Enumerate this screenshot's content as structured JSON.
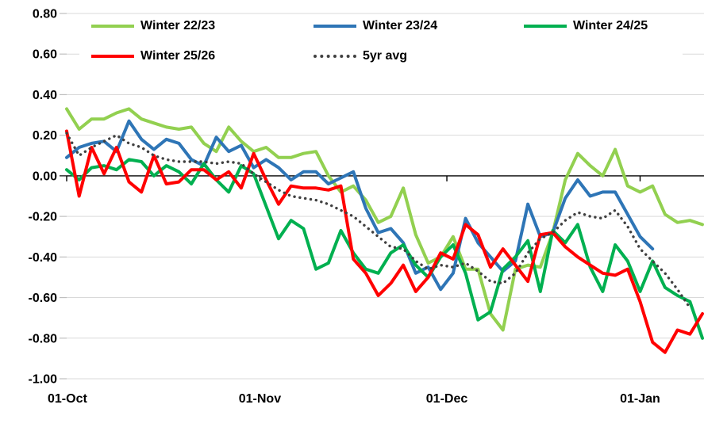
{
  "colors": {
    "background": "#ffffff",
    "gridline": "#d9d9d9",
    "zero_axis": "#000000",
    "tick": "#bfbfbf",
    "text": "#000000"
  },
  "chart_data": {
    "type": "line",
    "title": "",
    "xlabel": "",
    "ylabel": "",
    "legend_position": "top",
    "grid": "horizontal",
    "x_axis": {
      "tick_labels": [
        "01-Oct",
        "01-Nov",
        "01-Dec",
        "01-Jan"
      ],
      "tick_day_offsets": [
        0,
        31,
        61,
        92
      ],
      "total_days": 102
    },
    "y_axis": {
      "ylim": [
        -1.0,
        0.8
      ],
      "ticks": [
        0.8,
        0.6,
        0.4,
        0.2,
        0.0,
        -0.2,
        -0.4,
        -0.6,
        -0.8,
        -1.0
      ],
      "tick_labels": [
        "0.80",
        "0.60",
        "0.40",
        "0.20",
        "0.00",
        "-0.20",
        "-0.40",
        "-0.60",
        "-0.80",
        "-1.00"
      ]
    },
    "sample_step_days": 2,
    "dates": [
      "01-Oct",
      "03-Oct",
      "05-Oct",
      "07-Oct",
      "09-Oct",
      "11-Oct",
      "13-Oct",
      "15-Oct",
      "17-Oct",
      "19-Oct",
      "21-Oct",
      "23-Oct",
      "25-Oct",
      "27-Oct",
      "29-Oct",
      "31-Oct",
      "02-Nov",
      "04-Nov",
      "06-Nov",
      "08-Nov",
      "10-Nov",
      "12-Nov",
      "14-Nov",
      "16-Nov",
      "18-Nov",
      "20-Nov",
      "22-Nov",
      "24-Nov",
      "26-Nov",
      "28-Nov",
      "30-Nov",
      "02-Dec",
      "04-Dec",
      "06-Dec",
      "08-Dec",
      "10-Dec",
      "12-Dec",
      "14-Dec",
      "16-Dec",
      "18-Dec",
      "20-Dec",
      "22-Dec",
      "24-Dec",
      "26-Dec",
      "28-Dec",
      "30-Dec",
      "01-Jan",
      "03-Jan",
      "05-Jan",
      "07-Jan",
      "09-Jan",
      "11-Jan"
    ],
    "series": [
      {
        "name": "Winter 22/23",
        "color": "#92d050",
        "style": "solid",
        "values": [
          0.33,
          0.23,
          0.28,
          0.28,
          0.31,
          0.33,
          0.28,
          0.26,
          0.24,
          0.23,
          0.24,
          0.16,
          0.12,
          0.24,
          0.17,
          0.12,
          0.14,
          0.09,
          0.09,
          0.11,
          0.12,
          0.0,
          -0.08,
          -0.05,
          -0.12,
          -0.23,
          -0.2,
          -0.06,
          -0.29,
          -0.43,
          -0.4,
          -0.3,
          -0.46,
          -0.46,
          -0.68,
          -0.76,
          -0.46,
          -0.44,
          -0.45,
          -0.28,
          -0.02,
          0.11,
          0.05,
          0.0,
          0.13,
          -0.05,
          -0.08,
          -0.05,
          -0.19,
          -0.23,
          -0.22,
          -0.24
        ]
      },
      {
        "name": "Winter 23/24",
        "color": "#2e75b6",
        "style": "solid",
        "values": [
          0.09,
          0.14,
          0.16,
          0.17,
          0.12,
          0.27,
          0.18,
          0.13,
          0.18,
          0.16,
          0.08,
          0.05,
          0.19,
          0.12,
          0.15,
          0.04,
          0.08,
          0.04,
          -0.02,
          0.02,
          0.02,
          -0.04,
          -0.01,
          0.02,
          -0.16,
          -0.28,
          -0.26,
          -0.33,
          -0.48,
          -0.45,
          -0.56,
          -0.48,
          -0.21,
          -0.33,
          -0.4,
          -0.47,
          -0.42,
          -0.14,
          -0.3,
          -0.28,
          -0.11,
          -0.02,
          -0.1,
          -0.08,
          -0.08,
          -0.19,
          -0.3,
          -0.36,
          null,
          null,
          null,
          null
        ]
      },
      {
        "name": "Winter 24/25",
        "color": "#00b050",
        "style": "solid",
        "values": [
          0.03,
          -0.02,
          0.04,
          0.05,
          0.03,
          0.08,
          0.07,
          0.0,
          0.05,
          0.02,
          -0.04,
          0.06,
          -0.02,
          -0.08,
          0.05,
          0.01,
          -0.15,
          -0.31,
          -0.22,
          -0.26,
          -0.46,
          -0.43,
          -0.27,
          -0.38,
          -0.46,
          -0.48,
          -0.38,
          -0.34,
          -0.44,
          -0.5,
          -0.4,
          -0.34,
          -0.48,
          -0.71,
          -0.67,
          -0.46,
          -0.4,
          -0.32,
          -0.57,
          -0.27,
          -0.33,
          -0.24,
          -0.45,
          -0.57,
          -0.34,
          -0.42,
          -0.57,
          -0.42,
          -0.55,
          -0.59,
          -0.62,
          -0.8
        ]
      },
      {
        "name": "Winter 25/26",
        "color": "#ff0000",
        "style": "solid",
        "values": [
          0.22,
          -0.1,
          0.14,
          0.01,
          0.14,
          -0.03,
          -0.08,
          0.1,
          -0.04,
          -0.03,
          0.03,
          0.03,
          -0.02,
          0.02,
          -0.06,
          0.11,
          -0.02,
          -0.14,
          -0.05,
          -0.06,
          -0.06,
          -0.07,
          -0.05,
          -0.41,
          -0.48,
          -0.59,
          -0.53,
          -0.44,
          -0.57,
          -0.5,
          -0.38,
          -0.41,
          -0.24,
          -0.29,
          -0.45,
          -0.36,
          -0.44,
          -0.52,
          -0.29,
          -0.28,
          -0.35,
          -0.4,
          -0.44,
          -0.48,
          -0.49,
          -0.46,
          -0.62,
          -0.82,
          -0.87,
          -0.76,
          -0.78,
          -0.68
        ]
      },
      {
        "name": "5yr avg",
        "color": "#404040",
        "style": "dotted",
        "values": [
          0.21,
          0.1,
          0.14,
          0.17,
          0.2,
          0.16,
          0.14,
          0.1,
          0.08,
          0.07,
          0.07,
          0.07,
          0.06,
          0.07,
          0.06,
          0.01,
          -0.03,
          -0.07,
          -0.1,
          -0.11,
          -0.12,
          -0.14,
          -0.17,
          -0.2,
          -0.25,
          -0.3,
          -0.35,
          -0.36,
          -0.42,
          -0.46,
          -0.44,
          -0.45,
          -0.43,
          -0.47,
          -0.52,
          -0.53,
          -0.48,
          -0.38,
          -0.31,
          -0.28,
          -0.22,
          -0.18,
          -0.2,
          -0.21,
          -0.17,
          -0.25,
          -0.36,
          -0.42,
          -0.48,
          -0.56,
          -0.65,
          null
        ]
      }
    ]
  }
}
